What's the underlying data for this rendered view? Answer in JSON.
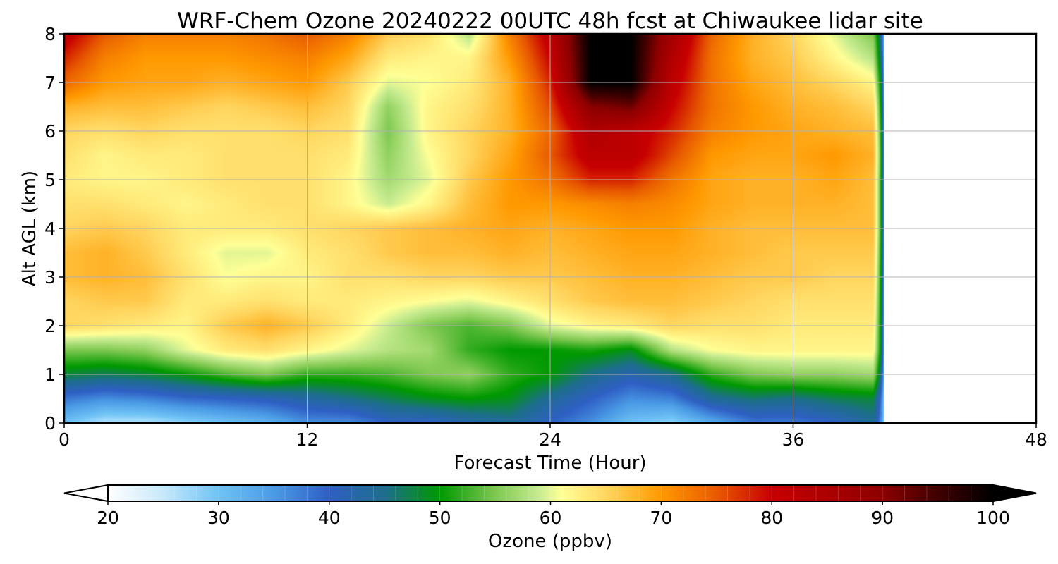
{
  "chart_data": {
    "type": "heatmap",
    "title": "WRF-Chem Ozone  20240222 00UTC 48h fcst at Chiwaukee lidar site",
    "xlabel": "Forecast Time (Hour)",
    "ylabel": "Alt AGL (km)",
    "xlim": [
      0,
      48
    ],
    "ylim": [
      0,
      8
    ],
    "x_ticks": [
      0,
      12,
      24,
      36,
      48
    ],
    "y_ticks": [
      0,
      1,
      2,
      3,
      4,
      5,
      6,
      7,
      8
    ],
    "grid": true,
    "data_end_hour": 40.5,
    "colorbar": {
      "label": "Ozone  (ppbv)",
      "min": 20,
      "max": 100,
      "ticks": [
        20,
        30,
        40,
        50,
        60,
        70,
        80,
        90,
        100
      ],
      "extend": "both",
      "orientation": "horizontal",
      "placement": "bottom",
      "stops": [
        {
          "v": 20,
          "c": "#ffffff"
        },
        {
          "v": 25,
          "c": "#c8e8fa"
        },
        {
          "v": 30,
          "c": "#6ec3f5"
        },
        {
          "v": 35,
          "c": "#4a9be6"
        },
        {
          "v": 40,
          "c": "#2f5fc4"
        },
        {
          "v": 45,
          "c": "#1d6e8c"
        },
        {
          "v": 50,
          "c": "#009900"
        },
        {
          "v": 55,
          "c": "#7ec850"
        },
        {
          "v": 59,
          "c": "#c8ec90"
        },
        {
          "v": 61,
          "c": "#ffff96"
        },
        {
          "v": 65,
          "c": "#ffd660"
        },
        {
          "v": 70,
          "c": "#ff9900"
        },
        {
          "v": 75,
          "c": "#e85a00"
        },
        {
          "v": 80,
          "c": "#c80000"
        },
        {
          "v": 90,
          "c": "#8c0000"
        },
        {
          "v": 95,
          "c": "#400000"
        },
        {
          "v": 100,
          "c": "#000000"
        }
      ]
    },
    "grid_x_hours": [
      0,
      2,
      4,
      6,
      8,
      10,
      12,
      14,
      16,
      18,
      20,
      22,
      24,
      26,
      28,
      30,
      32,
      34,
      36,
      38,
      40
    ],
    "grid_alt_km": [
      0,
      0.5,
      1,
      1.5,
      2,
      2.5,
      3,
      3.5,
      4,
      4.5,
      5,
      5.5,
      6,
      6.5,
      7,
      7.5,
      8
    ],
    "values_ppbv": [
      [
        30,
        26,
        26,
        28,
        30,
        32,
        36,
        36,
        40,
        40,
        42,
        44,
        40,
        36,
        30,
        28,
        33,
        38,
        38,
        40,
        44
      ],
      [
        38,
        36,
        37,
        39,
        40,
        41,
        43,
        45,
        47,
        49,
        50,
        49,
        44,
        40,
        36,
        37,
        44,
        46,
        45,
        47,
        48
      ],
      [
        48,
        47,
        48,
        50,
        53,
        55,
        52,
        52,
        53,
        55,
        56,
        52,
        50,
        45,
        42,
        45,
        52,
        55,
        56,
        56,
        57
      ],
      [
        55,
        55,
        56,
        60,
        63,
        64,
        62,
        60,
        58,
        57,
        52,
        50,
        50,
        51,
        49,
        58,
        61,
        62,
        62,
        62,
        62
      ],
      [
        65,
        64,
        63,
        62,
        66,
        68,
        66,
        63,
        59,
        55,
        53,
        55,
        60,
        62,
        63,
        65,
        64,
        64,
        63,
        63,
        63
      ],
      [
        65,
        66,
        66,
        63,
        63,
        64,
        63,
        63,
        62,
        61,
        60,
        62,
        64,
        66,
        67,
        67,
        66,
        65,
        64,
        64,
        64
      ],
      [
        67,
        68,
        67,
        64,
        61,
        62,
        62,
        64,
        64,
        65,
        65,
        66,
        66,
        67,
        68,
        68,
        67,
        66,
        66,
        65,
        65
      ],
      [
        67,
        68,
        66,
        63,
        60,
        60,
        63,
        64,
        66,
        67,
        67,
        68,
        67,
        68,
        69,
        69,
        68,
        67,
        66,
        66,
        66
      ],
      [
        65,
        66,
        65,
        63,
        63,
        63,
        64,
        65,
        66,
        67,
        68,
        69,
        68,
        69,
        70,
        70,
        68,
        67,
        67,
        67,
        67
      ],
      [
        64,
        64,
        63,
        62,
        63,
        64,
        64,
        62,
        59,
        62,
        67,
        70,
        70,
        71,
        72,
        71,
        69,
        68,
        68,
        68,
        67
      ],
      [
        63,
        62,
        62,
        63,
        64,
        64,
        64,
        62,
        57,
        60,
        66,
        70,
        73,
        78,
        78,
        73,
        69,
        68,
        68,
        69,
        67
      ],
      [
        64,
        62,
        63,
        63,
        64,
        64,
        64,
        63,
        56,
        61,
        65,
        69,
        75,
        82,
        82,
        76,
        70,
        69,
        69,
        70,
        68
      ],
      [
        65,
        64,
        65,
        64,
        64,
        64,
        65,
        64,
        55,
        62,
        65,
        68,
        74,
        84,
        82,
        78,
        72,
        70,
        69,
        68,
        67
      ],
      [
        68,
        67,
        67,
        66,
        65,
        66,
        67,
        65,
        56,
        62,
        64,
        68,
        76,
        90,
        92,
        80,
        73,
        70,
        68,
        67,
        65
      ],
      [
        74,
        70,
        69,
        69,
        68,
        69,
        70,
        66,
        60,
        61,
        63,
        68,
        78,
        100,
        100,
        82,
        73,
        69,
        67,
        65,
        62
      ],
      [
        78,
        72,
        70,
        70,
        70,
        71,
        72,
        69,
        63,
        62,
        62,
        70,
        80,
        100,
        100,
        84,
        73,
        68,
        66,
        62,
        58
      ],
      [
        82,
        75,
        72,
        72,
        72,
        73,
        75,
        72,
        66,
        64,
        58,
        72,
        82,
        100,
        100,
        86,
        74,
        68,
        65,
        60,
        55
      ]
    ]
  }
}
